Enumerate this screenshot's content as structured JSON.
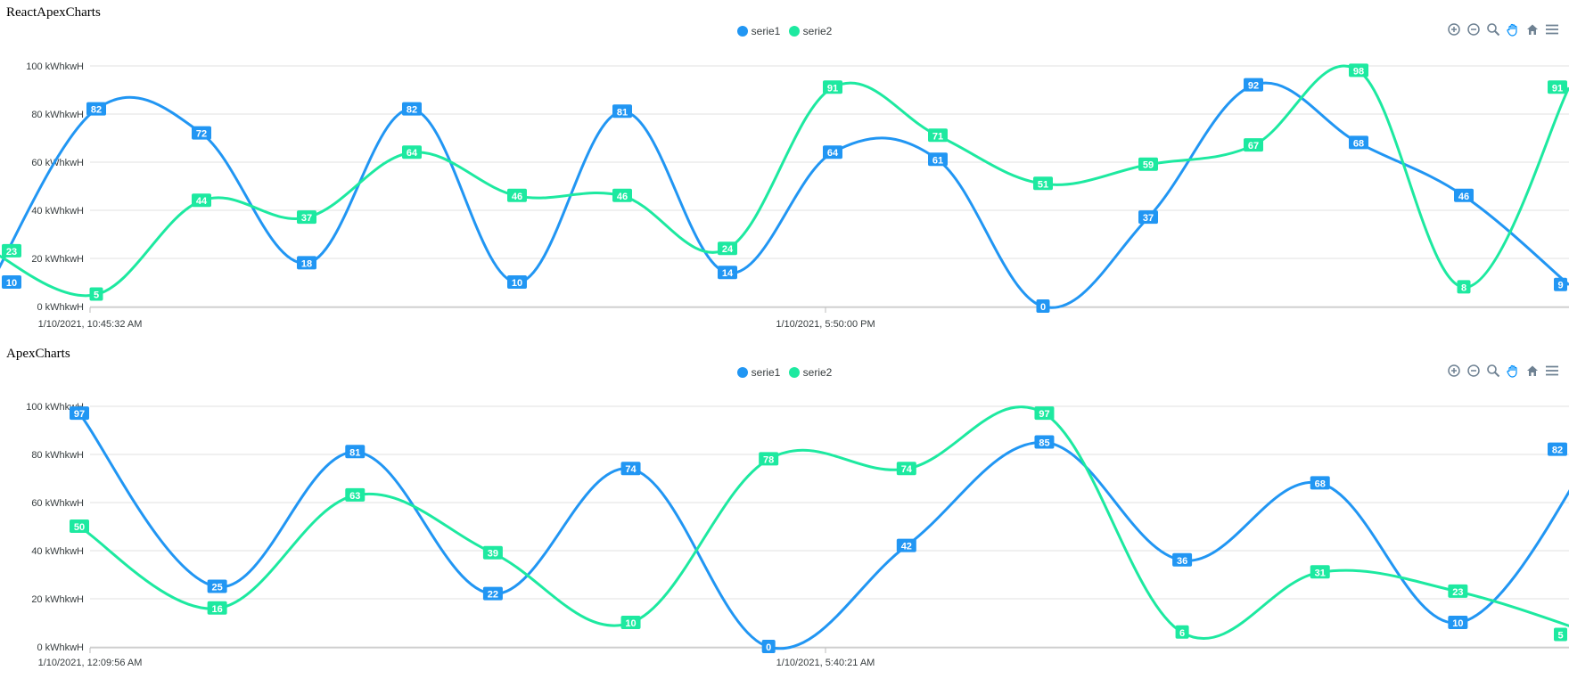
{
  "charts": [
    {
      "title": "ReactApexCharts"
    },
    {
      "title": "ApexCharts"
    }
  ],
  "legend": [
    "serie1",
    "serie2"
  ],
  "colors": {
    "serie1": "#2196f3",
    "serie2": "#1de9a0",
    "grid": "#e0e0e0",
    "axis_text": "#373d3f"
  },
  "toolbar_icons": [
    "zoom-in-icon",
    "zoom-out-icon",
    "magnifier-icon",
    "pan-hand-icon",
    "home-icon",
    "menu-icon"
  ],
  "chart_data": [
    {
      "type": "line",
      "title": "ReactApexCharts",
      "curve": "smooth",
      "ylim": [
        0,
        100
      ],
      "y_ticks": [
        "0 kWhkwH",
        "20 kWhkwH",
        "40 kWhkwH",
        "60 kWhkwH",
        "80 kWhkwH",
        "100 kWhkwH"
      ],
      "x_tick_labels": [
        "1/10/2021, 10:45:32 AM",
        "1/10/2021, 5:50:00 PM"
      ],
      "grid": true,
      "legend_position": "top-center",
      "series": [
        {
          "name": "serie1",
          "values": [
            10,
            82,
            72,
            18,
            82,
            10,
            81,
            14,
            64,
            61,
            0,
            37,
            92,
            68,
            46,
            9
          ]
        },
        {
          "name": "serie2",
          "values": [
            23,
            5,
            44,
            37,
            64,
            46,
            46,
            24,
            91,
            71,
            51,
            59,
            67,
            98,
            8,
            91
          ]
        }
      ]
    },
    {
      "type": "line",
      "title": "ApexCharts",
      "curve": "smooth",
      "ylim": [
        0,
        100
      ],
      "y_ticks": [
        "0 kWhkwH",
        "20 kWhkwH",
        "40 kWhkwH",
        "60 kWhkwH",
        "80 kWhkwH",
        "100 kWhkwH"
      ],
      "x_tick_labels": [
        "1/10/2021, 12:09:56 AM",
        "1/10/2021, 5:40:21 AM"
      ],
      "grid": true,
      "legend_position": "top-center",
      "series": [
        {
          "name": "serie1",
          "values": [
            97,
            25,
            81,
            22,
            74,
            0,
            42,
            85,
            36,
            68,
            10,
            82
          ]
        },
        {
          "name": "serie2",
          "values": [
            50,
            16,
            63,
            39,
            10,
            78,
            74,
            97,
            6,
            31,
            23,
            5
          ]
        }
      ]
    }
  ]
}
